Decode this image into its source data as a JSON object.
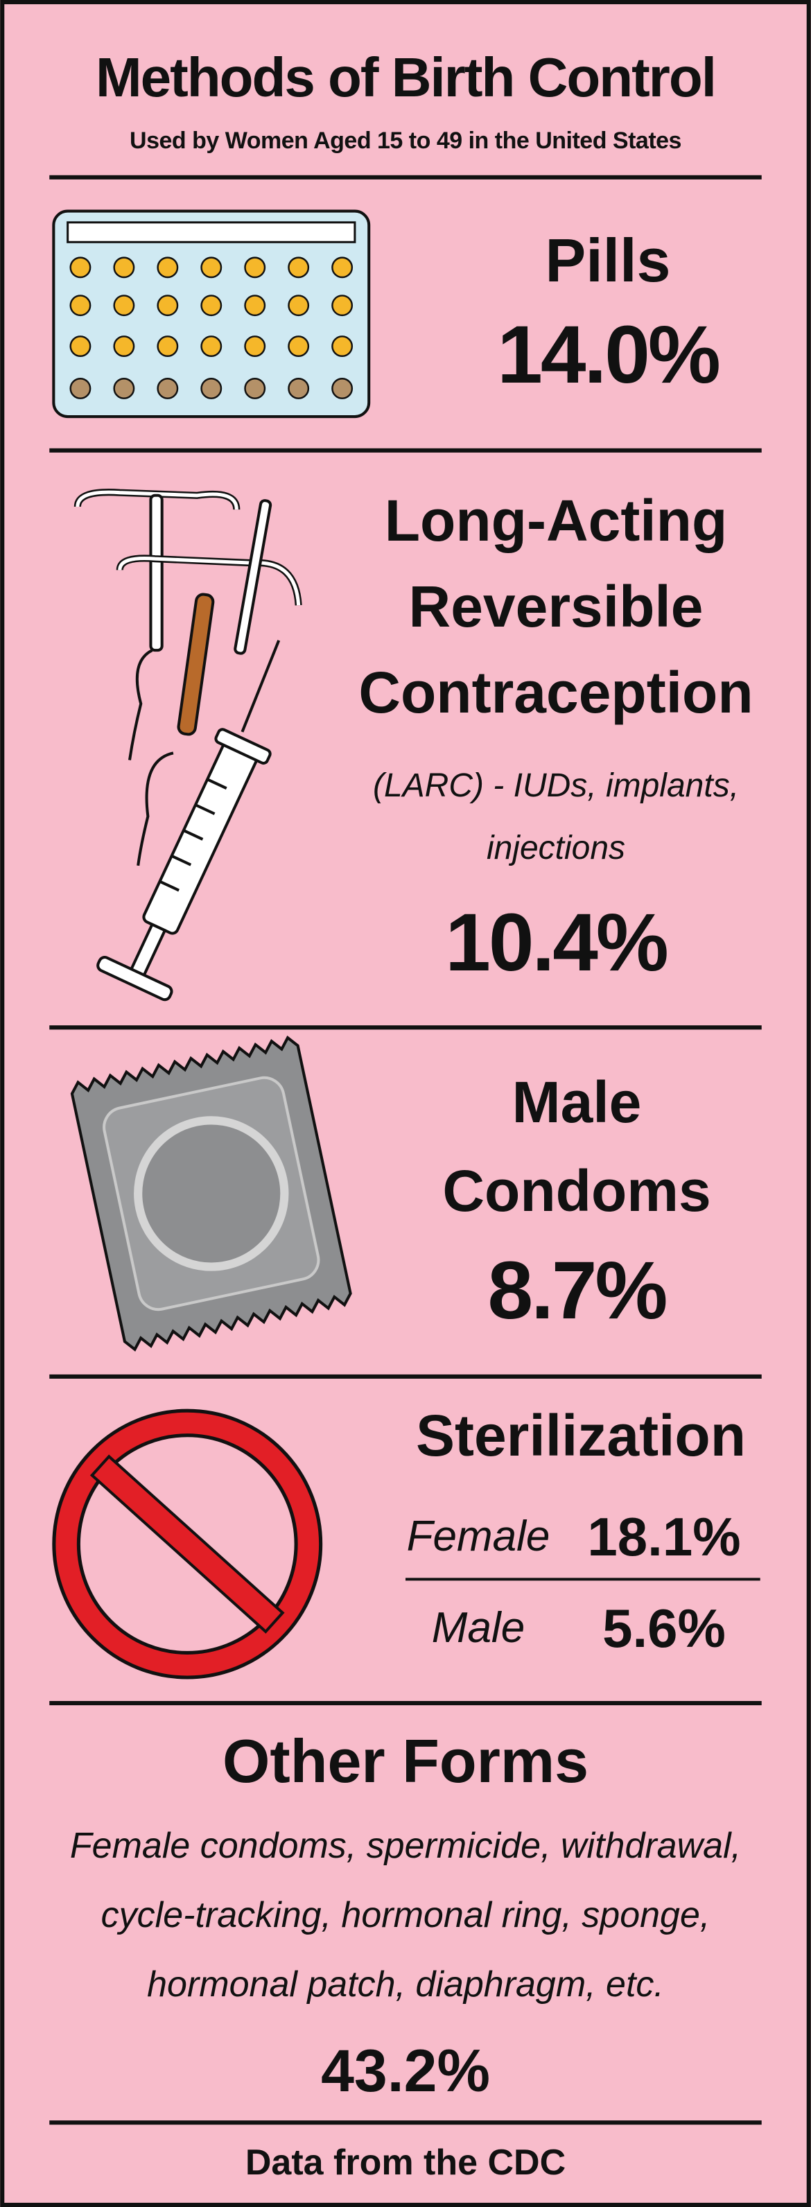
{
  "header": {
    "title": "Methods of Birth Control",
    "subtitle": "Used by Women Aged 15 to 49 in the United States"
  },
  "pills": {
    "title": "Pills",
    "value": "14.0%"
  },
  "larc": {
    "title": "Long-Acting Reversible Contraception",
    "note": "(LARC) - IUDs, implants, injections",
    "value": "10.4%"
  },
  "condoms": {
    "title": "Male Condoms",
    "value": "8.7%"
  },
  "sterilization": {
    "title": "Sterilization",
    "rows": [
      {
        "label": "Female",
        "value": "18.1%"
      },
      {
        "label": "Male",
        "value": "5.6%"
      }
    ]
  },
  "other": {
    "title": "Other Forms",
    "description": "Female condoms, spermicide, withdrawal, cycle-tracking, hormonal ring, sponge, hormonal patch, diaphragm, etc.",
    "value": "43.2%"
  },
  "footer": "Data from the CDC"
}
